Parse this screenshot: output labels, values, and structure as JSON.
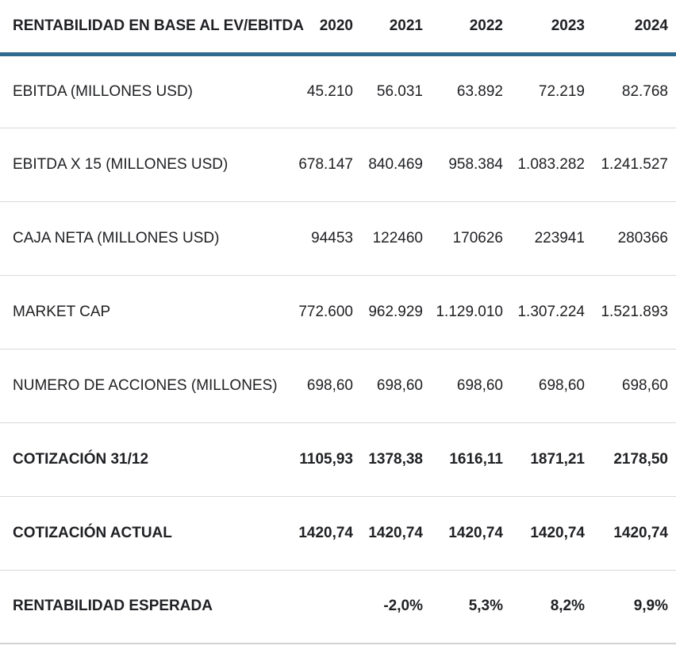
{
  "table": {
    "title": "RENTABILIDAD EN BASE AL EV/EBITDA",
    "years": [
      "2020",
      "2021",
      "2022",
      "2023",
      "2024"
    ],
    "rows": [
      {
        "label": "EBITDA (MILLONES USD)",
        "values": [
          "45.210",
          "56.031",
          "63.892",
          "72.219",
          "82.768"
        ]
      },
      {
        "label": "EBITDA X 15 (MILLONES USD)",
        "values": [
          "678.147",
          "840.469",
          "958.384",
          "1.083.282",
          "1.241.527"
        ]
      },
      {
        "label": "CAJA NETA (MILLONES USD)",
        "values": [
          "94453",
          "122460",
          "170626",
          "223941",
          "280366"
        ]
      },
      {
        "label": "MARKET CAP",
        "values": [
          "772.600",
          "962.929",
          "1.129.010",
          "1.307.224",
          "1.521.893"
        ]
      },
      {
        "label": "NUMERO DE ACCIONES (MILLONES)",
        "values": [
          "698,60",
          "698,60",
          "698,60",
          "698,60",
          "698,60"
        ]
      },
      {
        "label": "COTIZACIÓN 31/12",
        "values": [
          "1105,93",
          "1378,38",
          "1616,11",
          "1871,21",
          "2178,50"
        ]
      },
      {
        "label": "COTIZACIÓN ACTUAL",
        "values": [
          "1420,74",
          "1420,74",
          "1420,74",
          "1420,74",
          "1420,74"
        ]
      },
      {
        "label": "RENTABILIDAD ESPERADA",
        "values": [
          "",
          "-2,0%",
          "5,3%",
          "8,2%",
          "9,9%"
        ]
      }
    ],
    "colors": {
      "header_rule": "#2e6a8e",
      "row_divider": "#d9d9d9",
      "bottom_rule": "#d2d2d2",
      "text": "#202124"
    }
  },
  "chart_data": {
    "type": "table",
    "title": "RENTABILIDAD EN BASE AL EV/EBITDA",
    "columns": [
      "2020",
      "2021",
      "2022",
      "2023",
      "2024"
    ],
    "series": [
      {
        "name": "EBITDA (MILLONES USD)",
        "values": [
          45210,
          56031,
          63892,
          72219,
          82768
        ]
      },
      {
        "name": "EBITDA X 15 (MILLONES USD)",
        "values": [
          678147,
          840469,
          958384,
          1083282,
          1241527
        ]
      },
      {
        "name": "CAJA NETA (MILLONES USD)",
        "values": [
          94453,
          122460,
          170626,
          223941,
          280366
        ]
      },
      {
        "name": "MARKET CAP",
        "values": [
          772600,
          962929,
          1129010,
          1307224,
          1521893
        ]
      },
      {
        "name": "NUMERO DE ACCIONES (MILLONES)",
        "values": [
          698.6,
          698.6,
          698.6,
          698.6,
          698.6
        ]
      },
      {
        "name": "COTIZACIÓN 31/12",
        "values": [
          1105.93,
          1378.38,
          1616.11,
          1871.21,
          2178.5
        ]
      },
      {
        "name": "COTIZACIÓN ACTUAL",
        "values": [
          1420.74,
          1420.74,
          1420.74,
          1420.74,
          1420.74
        ]
      },
      {
        "name": "RENTABILIDAD ESPERADA (%)",
        "values": [
          null,
          -2.0,
          5.3,
          8.2,
          9.9
        ]
      }
    ]
  }
}
